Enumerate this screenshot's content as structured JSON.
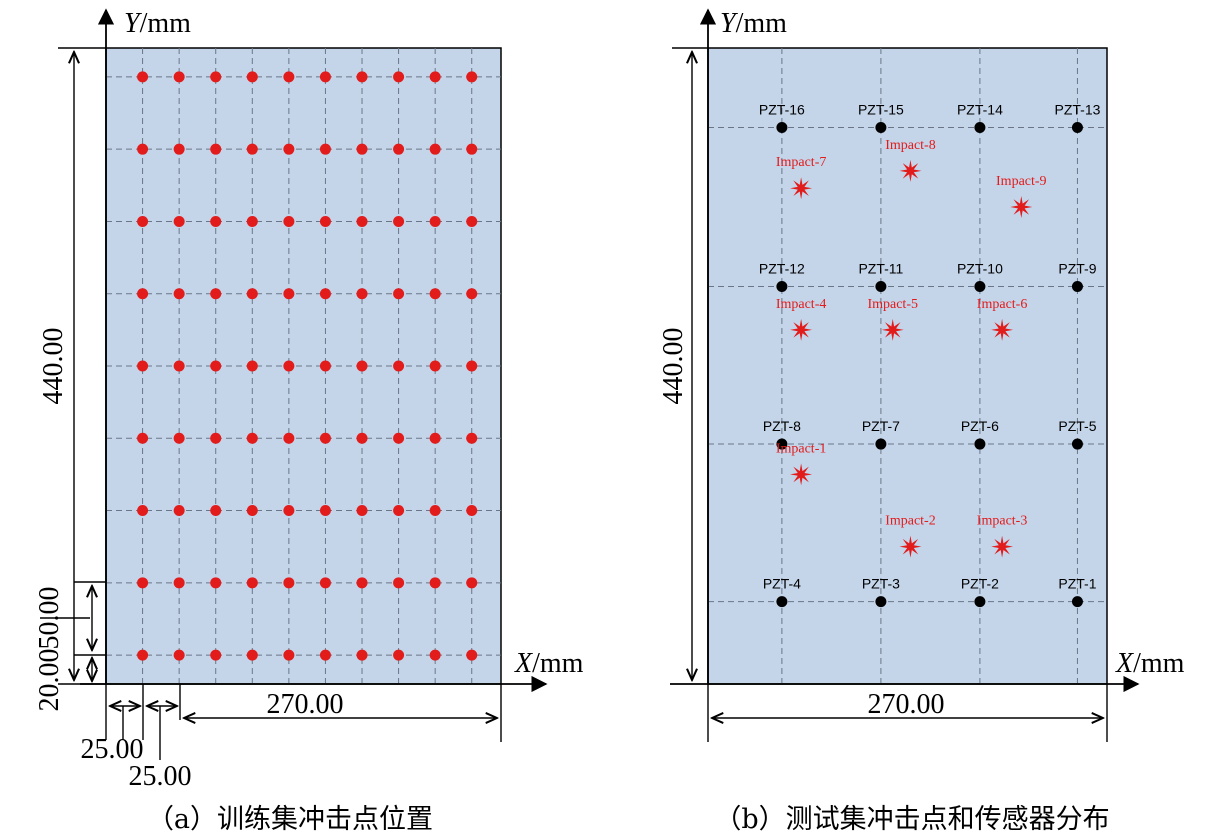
{
  "units": "mm",
  "colors": {
    "plate": "#c4d5ea",
    "train_point": "#e21b1b",
    "sensor": "#000000",
    "impact": "#e21b1b",
    "impact_label": "#e21b1b",
    "grid": "#6a7687"
  },
  "panel_a": {
    "caption": "（a）训练集冲击点位置",
    "x_axis_label": {
      "var": "X",
      "unit": "/mm"
    },
    "y_axis_label": {
      "var": "Y",
      "unit": "/mm"
    },
    "dimensions": {
      "height": "440.00",
      "width": "270.00",
      "row_pitch": "50.00",
      "bottom_offset": "20.00",
      "left_offset": "25.00",
      "col_pitch": "25.00"
    },
    "plate": {
      "width": 270,
      "height": 440
    },
    "point_x": [
      25,
      50,
      75,
      100,
      125,
      150,
      175,
      200,
      225,
      250
    ],
    "point_y": [
      20,
      70,
      120,
      170,
      220,
      270,
      320,
      370,
      420
    ]
  },
  "panel_b": {
    "caption": "（b）测试集冲击点和传感器分布",
    "x_axis_label": {
      "var": "X",
      "unit": "/mm"
    },
    "y_axis_label": {
      "var": "Y",
      "unit": "/mm"
    },
    "dimensions": {
      "height": "440.00",
      "width": "270.00"
    },
    "plate": {
      "width": 270,
      "height": 440
    },
    "sensors": [
      {
        "label": "PZT-1",
        "x": 250,
        "y": 57
      },
      {
        "label": "PZT-2",
        "x": 184,
        "y": 57
      },
      {
        "label": "PZT-3",
        "x": 117,
        "y": 57
      },
      {
        "label": "PZT-4",
        "x": 50,
        "y": 57
      },
      {
        "label": "PZT-5",
        "x": 250,
        "y": 166
      },
      {
        "label": "PZT-6",
        "x": 184,
        "y": 166
      },
      {
        "label": "PZT-7",
        "x": 117,
        "y": 166
      },
      {
        "label": "PZT-8",
        "x": 50,
        "y": 166
      },
      {
        "label": "PZT-9",
        "x": 250,
        "y": 275
      },
      {
        "label": "PZT-10",
        "x": 184,
        "y": 275
      },
      {
        "label": "PZT-11",
        "x": 117,
        "y": 275
      },
      {
        "label": "PZT-12",
        "x": 50,
        "y": 275
      },
      {
        "label": "PZT-13",
        "x": 250,
        "y": 385
      },
      {
        "label": "PZT-14",
        "x": 184,
        "y": 385
      },
      {
        "label": "PZT-15",
        "x": 117,
        "y": 385
      },
      {
        "label": "PZT-16",
        "x": 50,
        "y": 385
      }
    ],
    "impacts": [
      {
        "label": "Impact-1",
        "x": 63,
        "y": 145
      },
      {
        "label": "Impact-2",
        "x": 137,
        "y": 95
      },
      {
        "label": "Impact-3",
        "x": 199,
        "y": 95
      },
      {
        "label": "Impact-4",
        "x": 63,
        "y": 245
      },
      {
        "label": "Impact-5",
        "x": 125,
        "y": 245
      },
      {
        "label": "Impact-6",
        "x": 199,
        "y": 245
      },
      {
        "label": "Impact-7",
        "x": 63,
        "y": 343
      },
      {
        "label": "Impact-8",
        "x": 137,
        "y": 355
      },
      {
        "label": "Impact-9",
        "x": 212,
        "y": 330
      }
    ]
  }
}
